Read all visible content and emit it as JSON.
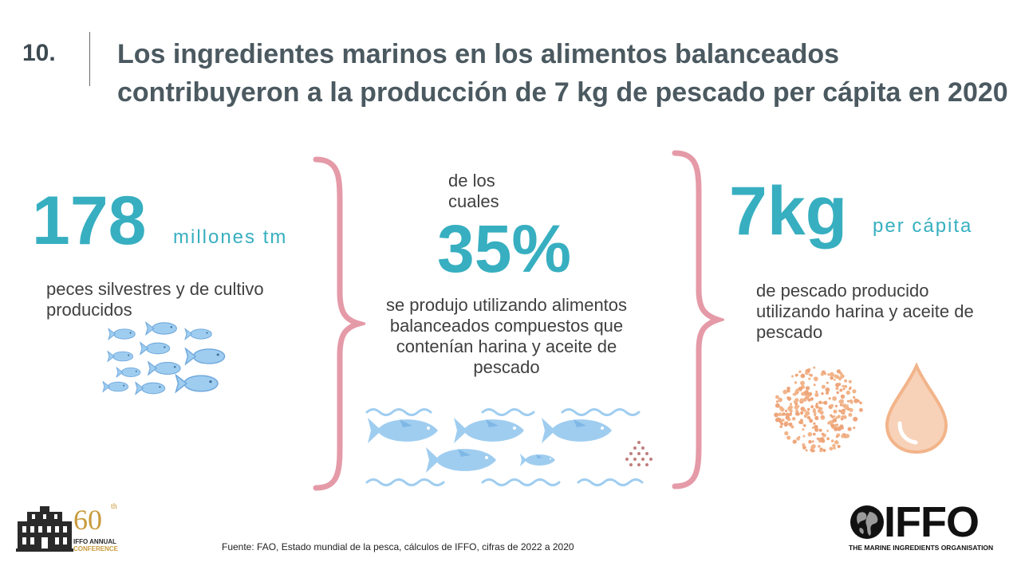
{
  "slide": {
    "number": "10.",
    "title": "Los ingredientes marinos en los alimentos balanceados contribuyeron a la producción de 7 kg de pescado per cápita en 2020"
  },
  "stats": [
    {
      "value": "178",
      "unit": "millones tm",
      "description": "peces silvestres y de cultivo producidos"
    },
    {
      "pre": "de los cuales",
      "value": "35%",
      "description": "se produjo utilizando alimentos balanceados compuestos que contenían harina y aceite de pescado"
    },
    {
      "value": "7kg",
      "unit": "per cápita",
      "description": "de pescado producido utilizando harina y aceite de pescado"
    }
  ],
  "source": "Fuente: FAO, Estado mundial de la pesca, cálculos de IFFO, cifras de 2022 a 2020",
  "logos": {
    "conference": {
      "number": "60",
      "suffix": "th",
      "line1": "IFFO ANNUAL",
      "line2": "CONFERENCE"
    },
    "iffo": {
      "wordmark": "IFFO",
      "tagline": "THE MARINE INGREDIENTS ORGANISATION"
    }
  },
  "colors": {
    "accent": "#37afc0",
    "brace": "#e59aa8",
    "title": "#4b5960",
    "fish": "#9fcdf0",
    "meal": "#f2b48a",
    "conference_gold": "#c89b3c"
  },
  "icons": [
    "fish-school-icon",
    "waves-icon",
    "fish-icon",
    "fishmeal-pellets-icon",
    "fishmeal-icon",
    "oil-drop-icon",
    "building-icon",
    "globe-icon"
  ]
}
